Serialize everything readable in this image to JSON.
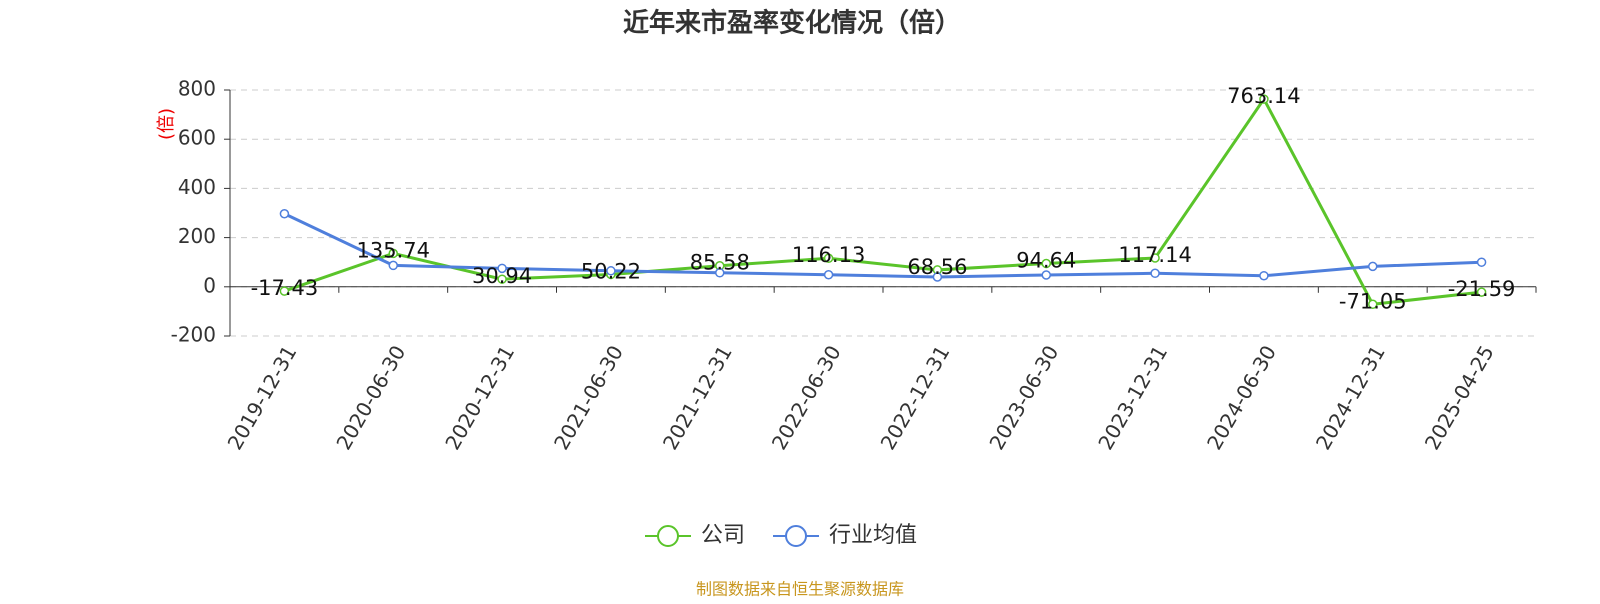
{
  "chart_data": {
    "type": "line",
    "title": "近年来市盈率变化情况（倍）",
    "y_label": "(倍)",
    "categories": [
      "2019-12-31",
      "2020-06-30",
      "2020-12-31",
      "2021-06-30",
      "2021-12-31",
      "2022-06-30",
      "2022-12-31",
      "2023-06-30",
      "2023-12-31",
      "2024-06-30",
      "2024-12-31",
      "2025-04-25"
    ],
    "series": [
      {
        "name": "公司",
        "color": "#5ac42a",
        "values": [
          -17.43,
          135.74,
          30.94,
          50.22,
          85.58,
          116.13,
          68.56,
          94.64,
          117.14,
          763.14,
          -71.05,
          -21.59
        ]
      },
      {
        "name": "行业均值",
        "color": "#4f7fdc",
        "values": [
          297,
          87,
          75,
          65,
          57,
          49,
          40,
          48,
          55,
          45,
          83,
          100
        ]
      }
    ],
    "ylim": [
      -200,
      800
    ],
    "yticks": [
      -200,
      0,
      200,
      400,
      600,
      800
    ],
    "grid": true,
    "legend": "bottom",
    "source": "制图数据来自恒生聚源数据库"
  }
}
